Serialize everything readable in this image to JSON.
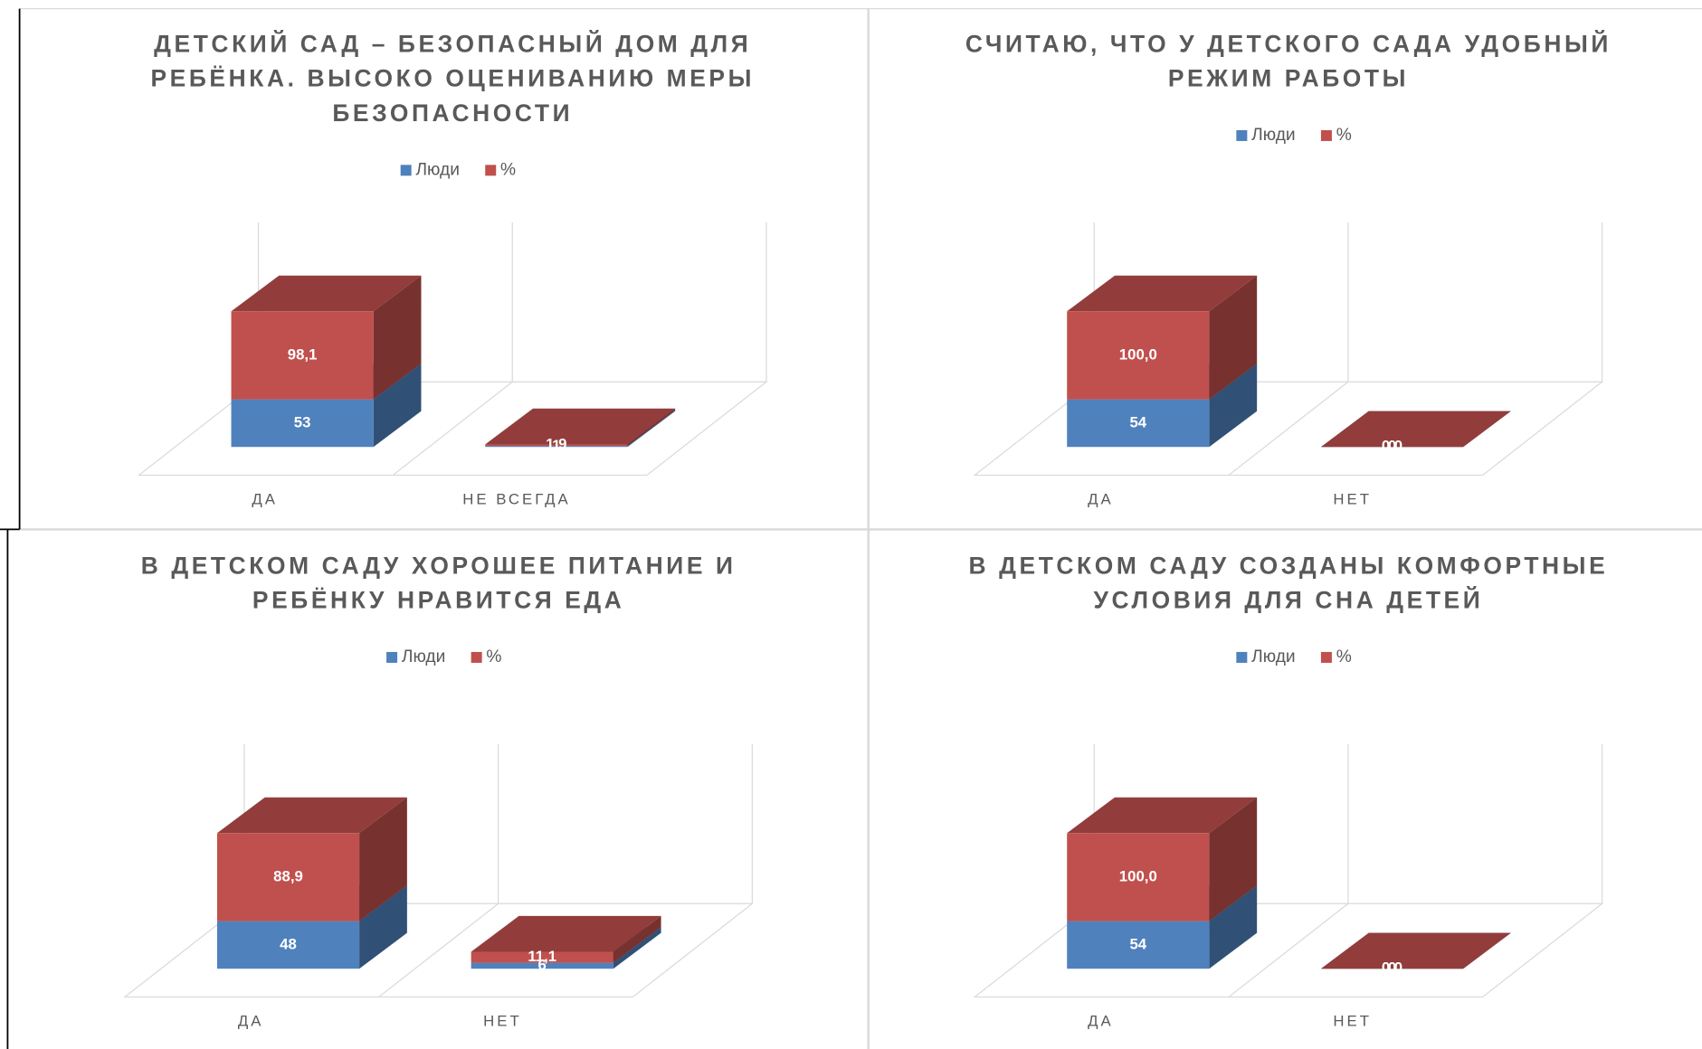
{
  "chart_data": [
    {
      "type": "bar3d",
      "title": [
        "ДЕТСКИЙ САД – БЕЗОПАСНЫЙ ДОМ ДЛЯ",
        "РЕБЁНКА. ВЫСОКО ОЦЕНИВАНИЮ МЕРЫ",
        "БЕЗОПАСНОСТИ"
      ],
      "categories": [
        "ДА",
        "НЕ ВСЕГДА"
      ],
      "series": [
        {
          "name": "Люди",
          "color": "#4f81bd",
          "values": [
            53,
            1
          ]
        },
        {
          "name": "%",
          "color": "#c0504d",
          "values": [
            98.1,
            1.9
          ],
          "value_labels": [
            "98,1",
            "1,9"
          ]
        }
      ]
    },
    {
      "type": "bar3d",
      "title": [
        "СЧИТАЮ, ЧТО У ДЕТСКОГО САДА УДОБНЫЙ",
        "РЕЖИМ РАБОТЫ"
      ],
      "categories": [
        "ДА",
        "НЕТ"
      ],
      "series": [
        {
          "name": "Люди",
          "color": "#4f81bd",
          "values": [
            54,
            0
          ]
        },
        {
          "name": "%",
          "color": "#c0504d",
          "values": [
            100.0,
            0.0
          ],
          "value_labels": [
            "100,0",
            "0,0"
          ]
        }
      ]
    },
    {
      "type": "bar3d",
      "title": [
        "В ДЕТСКОМ САДУ ХОРОШЕЕ ПИТАНИЕ И",
        "РЕБЁНКУ НРАВИТСЯ ЕДА"
      ],
      "categories": [
        "ДА",
        "НЕТ"
      ],
      "series": [
        {
          "name": "Люди",
          "color": "#4f81bd",
          "values": [
            48,
            6
          ]
        },
        {
          "name": "%",
          "color": "#c0504d",
          "values": [
            88.9,
            11.1
          ],
          "value_labels": [
            "88,9",
            "11,1"
          ]
        }
      ]
    },
    {
      "type": "bar3d",
      "title": [
        "В ДЕТСКОМ САДУ СОЗДАНЫ КОМФОРТНЫЕ",
        "УСЛОВИЯ ДЛЯ СНА ДЕТЕЙ"
      ],
      "categories": [
        "ДА",
        "НЕТ"
      ],
      "series": [
        {
          "name": "Люди",
          "color": "#4f81bd",
          "values": [
            54,
            0
          ]
        },
        {
          "name": "%",
          "color": "#c0504d",
          "values": [
            100.0,
            0.0
          ],
          "value_labels": [
            "100,0",
            "0,0"
          ]
        }
      ]
    }
  ]
}
